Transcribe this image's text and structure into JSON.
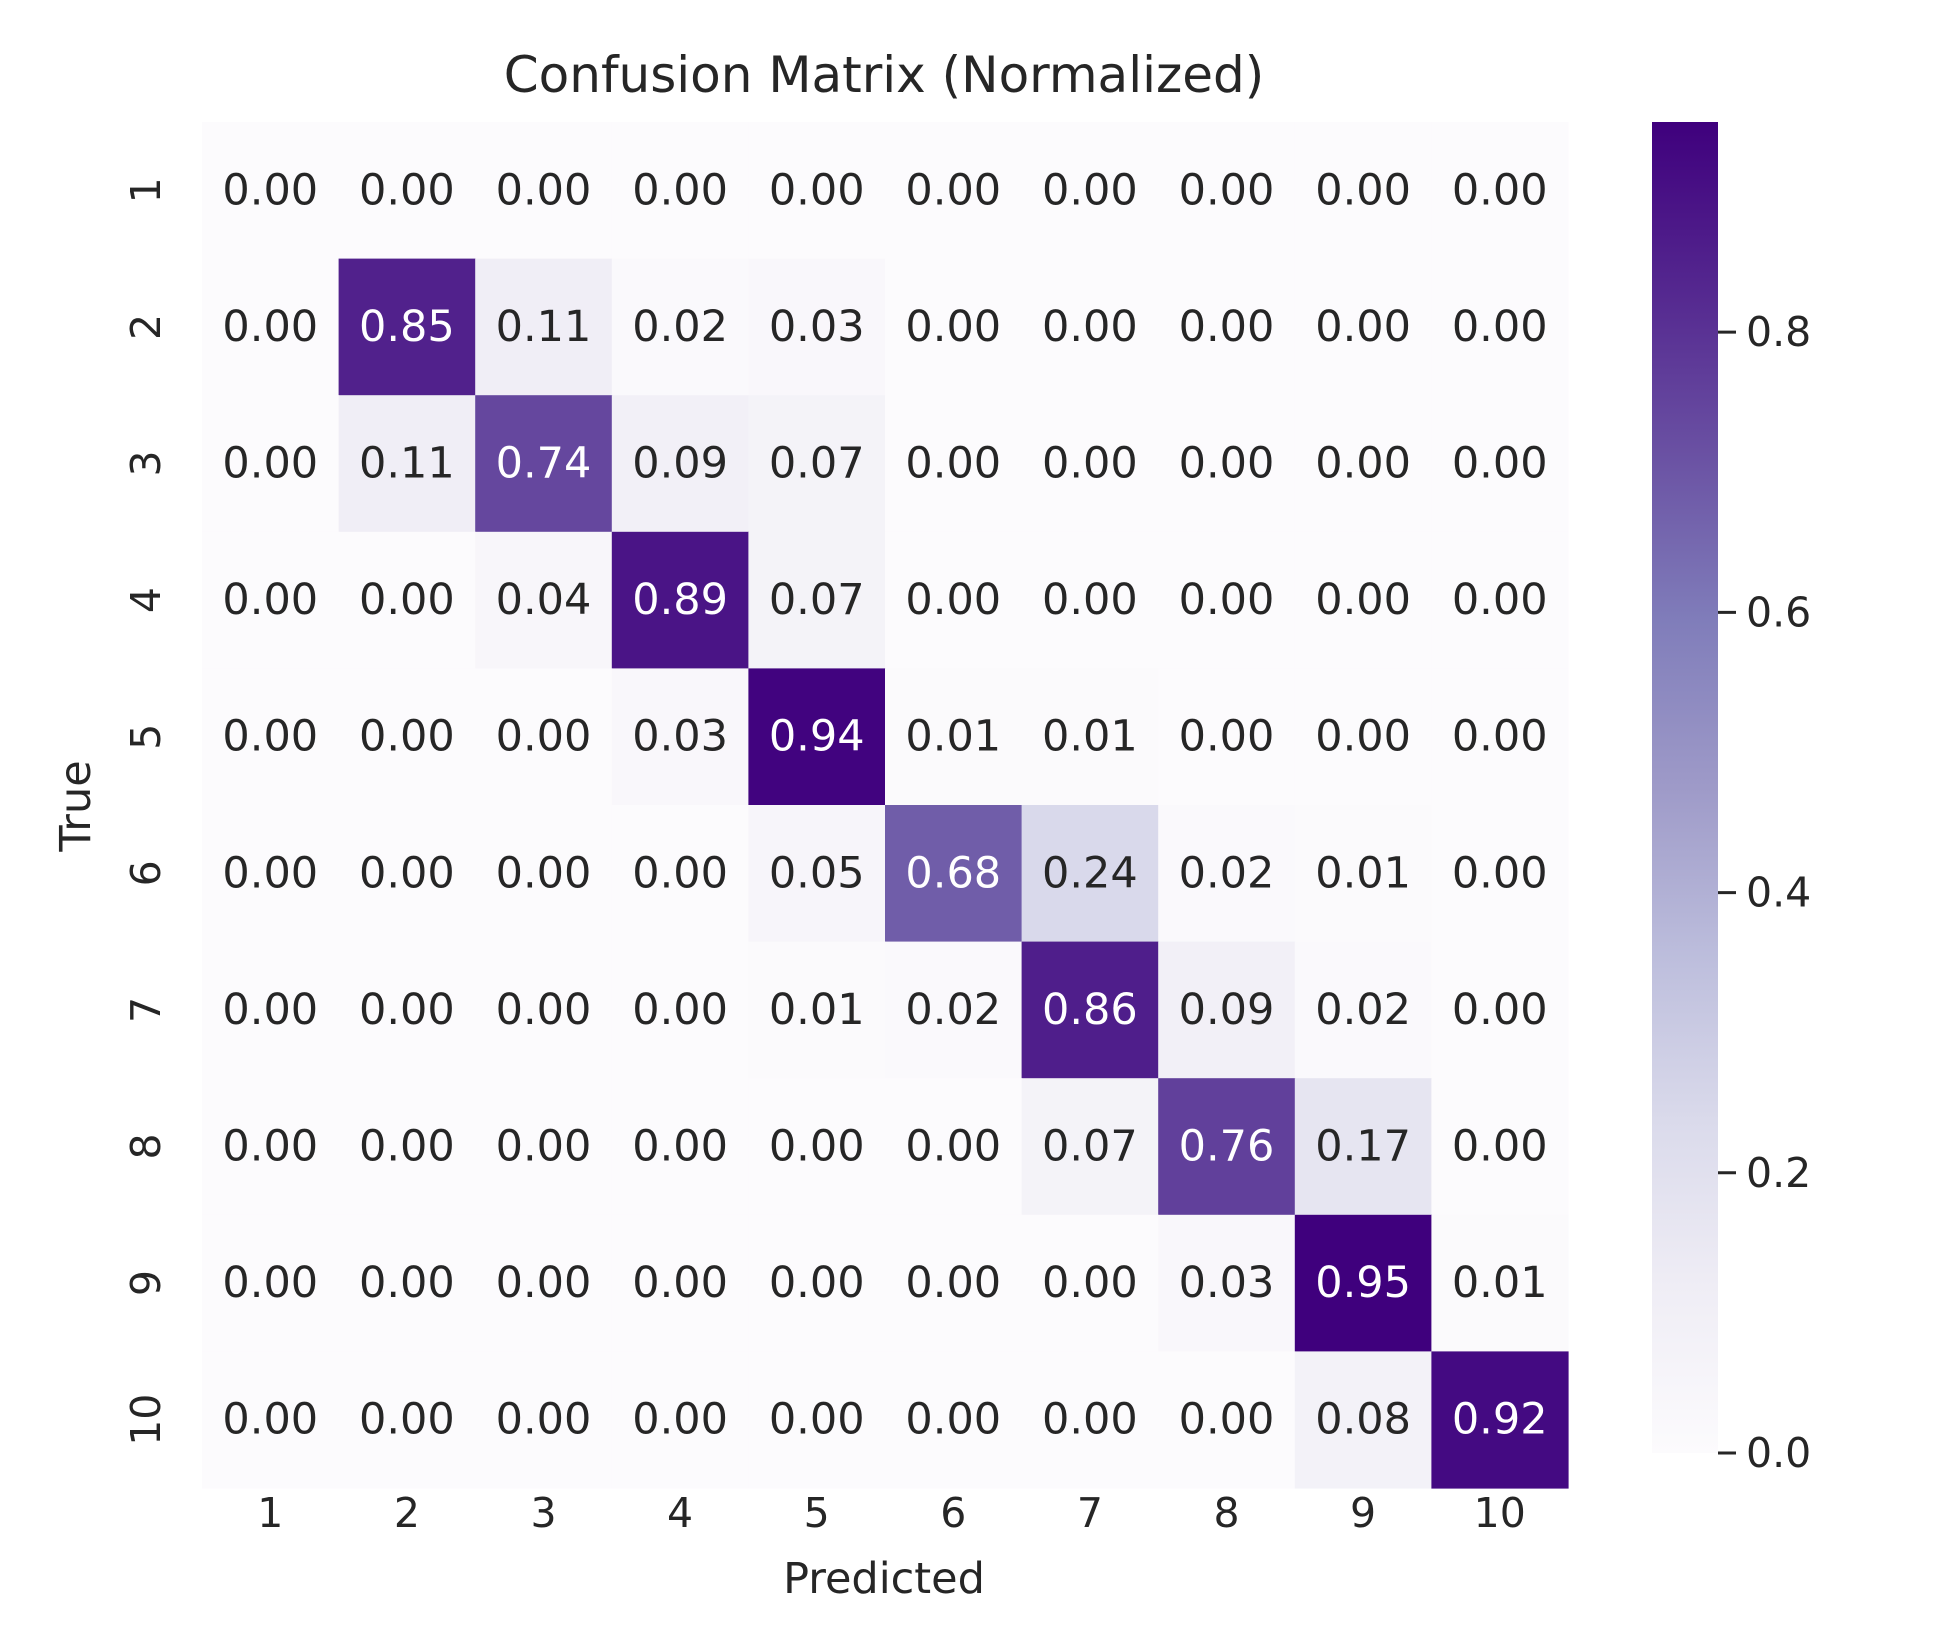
{
  "chart_data": {
    "type": "heatmap",
    "title": "Confusion Matrix (Normalized)",
    "xlabel": "Predicted",
    "ylabel": "True",
    "x_categories": [
      "1",
      "2",
      "3",
      "4",
      "5",
      "6",
      "7",
      "8",
      "9",
      "10"
    ],
    "y_categories": [
      "1",
      "2",
      "3",
      "4",
      "5",
      "6",
      "7",
      "8",
      "9",
      "10"
    ],
    "values": [
      [
        0.0,
        0.0,
        0.0,
        0.0,
        0.0,
        0.0,
        0.0,
        0.0,
        0.0,
        0.0
      ],
      [
        0.0,
        0.85,
        0.11,
        0.02,
        0.03,
        0.0,
        0.0,
        0.0,
        0.0,
        0.0
      ],
      [
        0.0,
        0.11,
        0.74,
        0.09,
        0.07,
        0.0,
        0.0,
        0.0,
        0.0,
        0.0
      ],
      [
        0.0,
        0.0,
        0.04,
        0.89,
        0.07,
        0.0,
        0.0,
        0.0,
        0.0,
        0.0
      ],
      [
        0.0,
        0.0,
        0.0,
        0.03,
        0.94,
        0.01,
        0.01,
        0.0,
        0.0,
        0.0
      ],
      [
        0.0,
        0.0,
        0.0,
        0.0,
        0.05,
        0.68,
        0.24,
        0.02,
        0.01,
        0.0
      ],
      [
        0.0,
        0.0,
        0.0,
        0.0,
        0.01,
        0.02,
        0.86,
        0.09,
        0.02,
        0.0
      ],
      [
        0.0,
        0.0,
        0.0,
        0.0,
        0.0,
        0.0,
        0.07,
        0.76,
        0.17,
        0.0
      ],
      [
        0.0,
        0.0,
        0.0,
        0.0,
        0.0,
        0.0,
        0.0,
        0.03,
        0.95,
        0.01
      ],
      [
        0.0,
        0.0,
        0.0,
        0.0,
        0.0,
        0.0,
        0.0,
        0.0,
        0.08,
        0.92
      ]
    ],
    "value_format": "0.00",
    "colormap": "Purples",
    "colormap_stops": [
      "#fcfbfd",
      "#efedf5",
      "#dadaeb",
      "#bcbddc",
      "#9e9ac8",
      "#807dba",
      "#6a51a3",
      "#54278f",
      "#3f007d"
    ],
    "colorbar": {
      "range": [
        0.0,
        0.95
      ],
      "ticks": [
        0.0,
        0.2,
        0.4,
        0.6,
        0.8
      ],
      "tick_labels": [
        "0.0",
        "0.2",
        "0.4",
        "0.6",
        "0.8"
      ]
    },
    "grid": false,
    "text_color_dark": "#262626",
    "text_color_light": "#ffffff"
  }
}
